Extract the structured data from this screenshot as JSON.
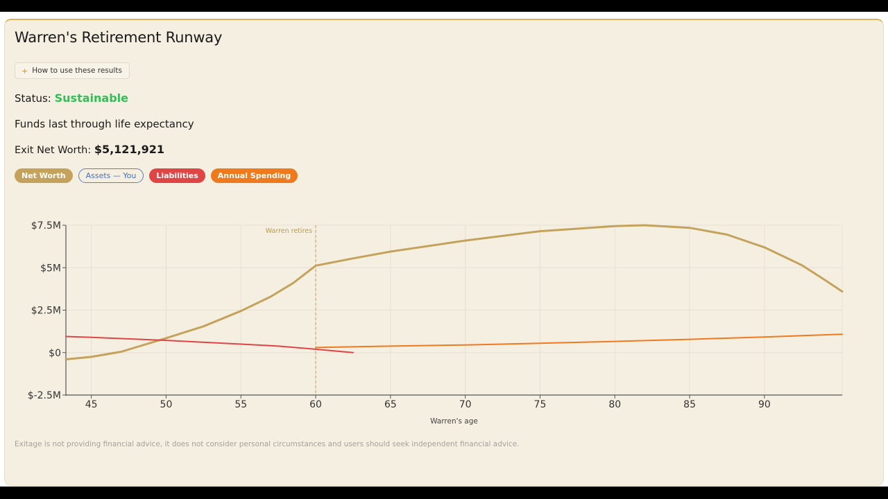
{
  "title": "Warren's Retirement Runway",
  "how_to": {
    "icon": "plus-icon",
    "label": "How to use these results"
  },
  "status": {
    "label": "Status:",
    "value": "Sustainable"
  },
  "funds_text": "Funds last through life expectancy",
  "exit": {
    "label": "Exit Net Worth:",
    "value": "$5,121,921"
  },
  "legend": {
    "net_worth": "Net Worth",
    "assets": "Assets — You",
    "liabilities": "Liabilities",
    "spending": "Annual Spending"
  },
  "colors": {
    "net_worth": "#c4a25b",
    "assets": "#5b7fc4",
    "liabilities": "#e04545",
    "spending": "#ee7a1d",
    "status": "#2fbf55"
  },
  "disclaimer": "Exitage is not providing financial advice, it does not consider personal circumstances and users should seek independent financial advice.",
  "chart_data": {
    "type": "line",
    "xlabel": "Warren's age",
    "ylabel": "",
    "xlim": [
      43.3,
      95.2
    ],
    "ylim": [
      -2.5,
      7.5
    ],
    "x_ticks": [
      45,
      50,
      55,
      60,
      65,
      70,
      75,
      80,
      85,
      90
    ],
    "y_ticks": [
      -2.5,
      0,
      2.5,
      5,
      7.5
    ],
    "y_tick_labels": [
      "$-2.5M",
      "$0",
      "$2.5M",
      "$5M",
      "$7.5M"
    ],
    "y_unit": "$M",
    "grid": true,
    "annotation": {
      "x": 60,
      "label": "Warren retires"
    },
    "series": [
      {
        "name": "Net Worth",
        "color": "#c4a25b",
        "points": [
          [
            43.3,
            -0.4
          ],
          [
            45,
            -0.25
          ],
          [
            47,
            0.05
          ],
          [
            50,
            0.85
          ],
          [
            52.5,
            1.55
          ],
          [
            55,
            2.45
          ],
          [
            57,
            3.3
          ],
          [
            58.5,
            4.1
          ],
          [
            60,
            5.12
          ],
          [
            62.5,
            5.55
          ],
          [
            65,
            5.95
          ],
          [
            70,
            6.6
          ],
          [
            75,
            7.15
          ],
          [
            80,
            7.45
          ],
          [
            82,
            7.5
          ],
          [
            85,
            7.35
          ],
          [
            87.5,
            6.95
          ],
          [
            90,
            6.2
          ],
          [
            92.5,
            5.15
          ],
          [
            94,
            4.3
          ],
          [
            95.2,
            3.6
          ]
        ]
      },
      {
        "name": "Liabilities",
        "color": "#e04545",
        "points": [
          [
            43.3,
            0.95
          ],
          [
            45,
            0.9
          ],
          [
            50,
            0.72
          ],
          [
            55,
            0.5
          ],
          [
            57.5,
            0.38
          ],
          [
            60,
            0.2
          ],
          [
            62.5,
            0.0
          ]
        ]
      },
      {
        "name": "Annual Spending",
        "color": "#ee7a1d",
        "points": [
          [
            60,
            0.3
          ],
          [
            65,
            0.38
          ],
          [
            70,
            0.45
          ],
          [
            75,
            0.55
          ],
          [
            80,
            0.66
          ],
          [
            85,
            0.78
          ],
          [
            90,
            0.92
          ],
          [
            95.2,
            1.08
          ]
        ]
      }
    ]
  }
}
